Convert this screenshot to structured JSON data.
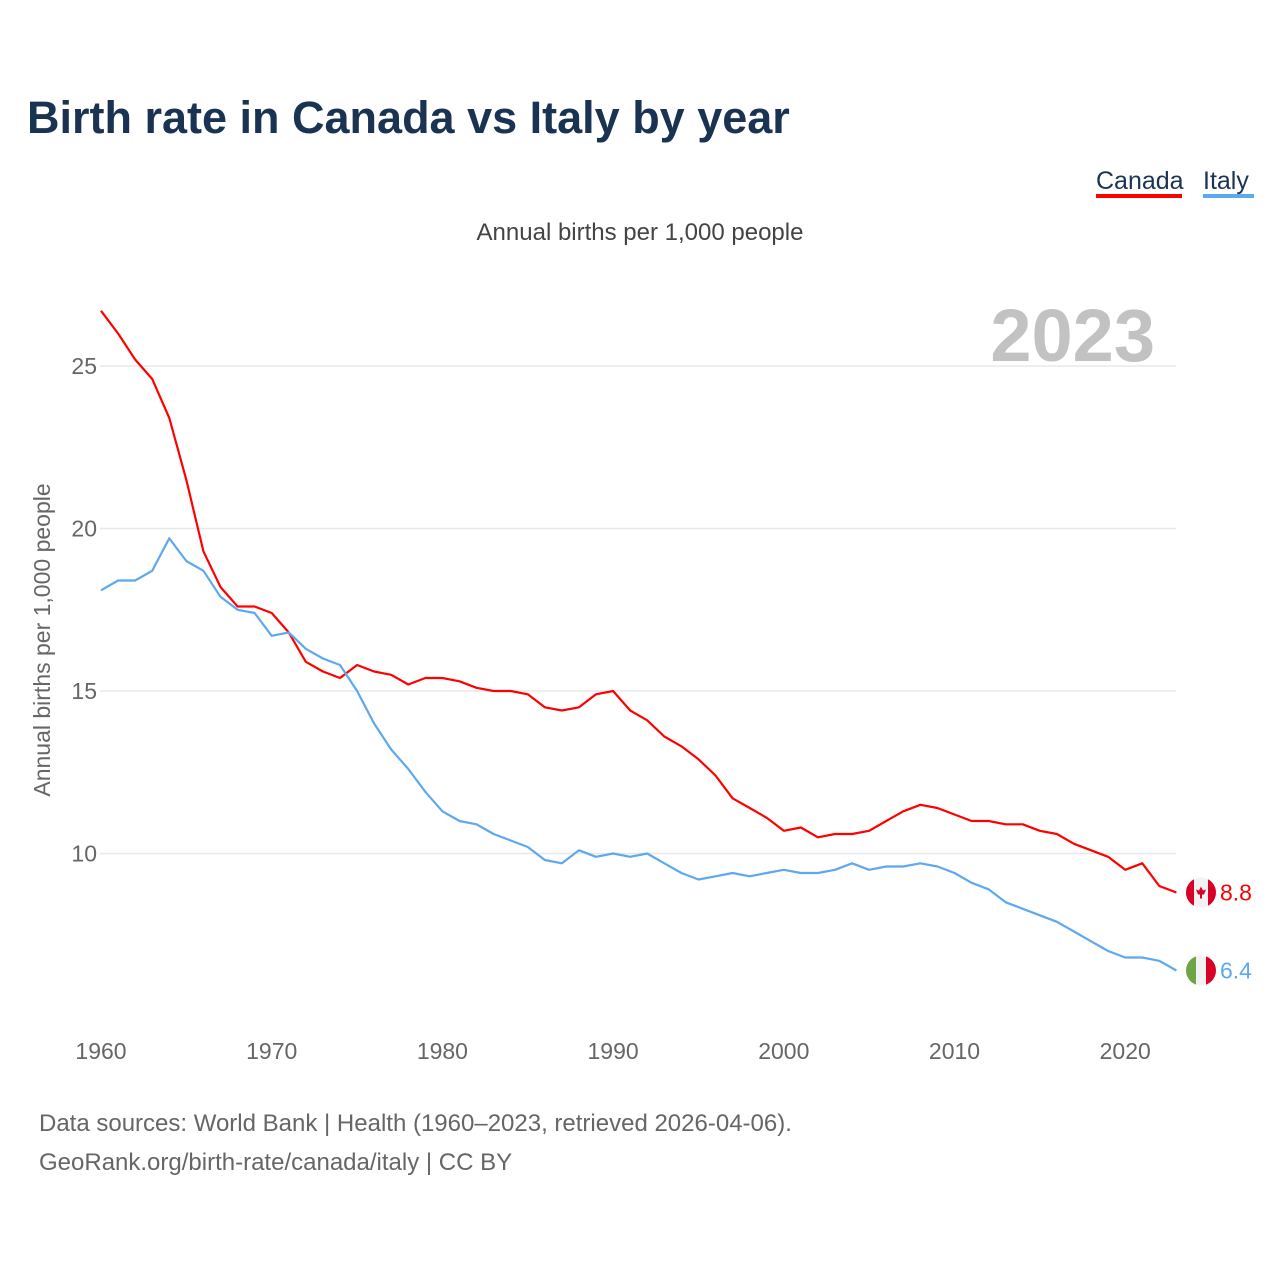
{
  "chart_data": {
    "type": "line",
    "title": "Birth rate in Canada vs Italy by year",
    "subtitle": "Annual births per 1,000 people",
    "ylabel": "Annual births per 1,000 people",
    "xlabel": "",
    "year_label": "2023",
    "xlim": [
      1960,
      2023
    ],
    "ylim": [
      6,
      27
    ],
    "grid": true,
    "legend_position": "top-right",
    "x_ticks": [
      1960,
      1970,
      1980,
      1990,
      2000,
      2010,
      2020
    ],
    "y_ticks": [
      10,
      15,
      20,
      25
    ],
    "x": [
      1960,
      1961,
      1962,
      1963,
      1964,
      1965,
      1966,
      1967,
      1968,
      1969,
      1970,
      1971,
      1972,
      1973,
      1974,
      1975,
      1976,
      1977,
      1978,
      1979,
      1980,
      1981,
      1982,
      1983,
      1984,
      1985,
      1986,
      1987,
      1988,
      1989,
      1990,
      1991,
      1992,
      1993,
      1994,
      1995,
      1996,
      1997,
      1998,
      1999,
      2000,
      2001,
      2002,
      2003,
      2004,
      2005,
      2006,
      2007,
      2008,
      2009,
      2010,
      2011,
      2012,
      2013,
      2014,
      2015,
      2016,
      2017,
      2018,
      2019,
      2020,
      2021,
      2022,
      2023
    ],
    "series": [
      {
        "name": "Canada",
        "color": "#ff0000",
        "end_label": "8.8",
        "flag": "canada-flag",
        "values": [
          26.7,
          26.0,
          25.2,
          24.6,
          23.4,
          21.5,
          19.3,
          18.2,
          17.6,
          17.6,
          17.4,
          16.8,
          15.9,
          15.6,
          15.4,
          15.8,
          15.6,
          15.5,
          15.2,
          15.4,
          15.4,
          15.3,
          15.1,
          15.0,
          15.0,
          14.9,
          14.5,
          14.4,
          14.5,
          14.9,
          15.0,
          14.4,
          14.1,
          13.6,
          13.3,
          12.9,
          12.4,
          11.7,
          11.4,
          11.1,
          10.7,
          10.8,
          10.5,
          10.6,
          10.6,
          10.7,
          11.0,
          11.3,
          11.5,
          11.4,
          11.2,
          11.0,
          11.0,
          10.9,
          10.9,
          10.7,
          10.6,
          10.3,
          10.1,
          9.9,
          9.5,
          9.7,
          9.0,
          8.8
        ]
      },
      {
        "name": "Italy",
        "color": "#5ea8ef",
        "end_label": "6.4",
        "flag": "italy-flag",
        "values": [
          18.1,
          18.4,
          18.4,
          18.7,
          19.7,
          19.0,
          18.7,
          17.9,
          17.5,
          17.4,
          16.7,
          16.8,
          16.3,
          16.0,
          15.8,
          15.0,
          14.0,
          13.2,
          12.6,
          11.9,
          11.3,
          11.0,
          10.9,
          10.6,
          10.4,
          10.2,
          9.8,
          9.7,
          10.1,
          9.9,
          10.0,
          9.9,
          10.0,
          9.7,
          9.4,
          9.2,
          9.3,
          9.4,
          9.3,
          9.4,
          9.5,
          9.4,
          9.4,
          9.5,
          9.7,
          9.5,
          9.6,
          9.6,
          9.7,
          9.6,
          9.4,
          9.1,
          8.9,
          8.5,
          8.3,
          8.1,
          7.9,
          7.6,
          7.3,
          7.0,
          6.8,
          6.8,
          6.7,
          6.4
        ]
      }
    ]
  },
  "footer": {
    "line1": "Data sources: World Bank | Health (1960–2023, retrieved 2026-04-06).",
    "line2": "GeoRank.org/birth-rate/canada/italy | CC BY"
  }
}
